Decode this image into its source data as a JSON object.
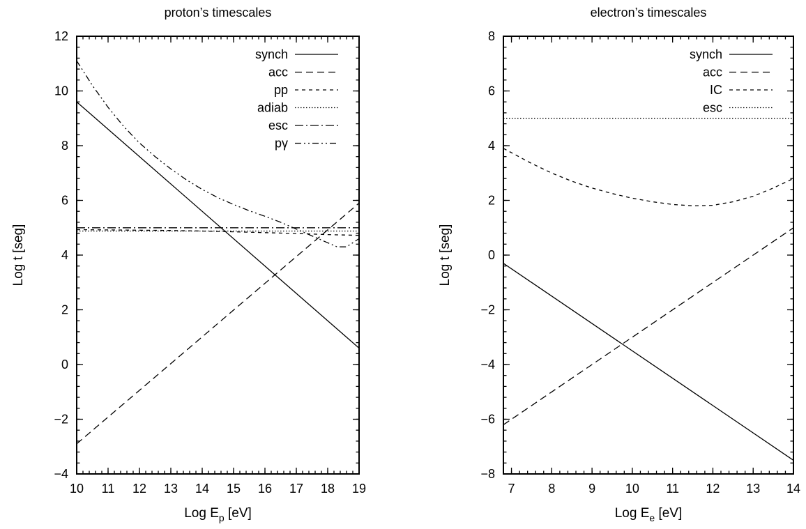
{
  "chart_data": [
    {
      "type": "line",
      "title": "proton’s timescales",
      "xlabel": "Log E",
      "xlabel_sub": "p",
      "xlabel_unit": " [eV]",
      "ylabel": "Log t [seg]",
      "xlim": [
        10,
        19
      ],
      "ylim": [
        -4,
        12
      ],
      "grid": false,
      "legend_position": "top-right",
      "x_ticks": [
        "10",
        "11",
        "12",
        "13",
        "14",
        "15",
        "16",
        "17",
        "18",
        "19"
      ],
      "y_ticks": [
        "−4",
        "−2",
        "0",
        "2",
        "4",
        "6",
        "8",
        "10",
        "12"
      ],
      "series": [
        {
          "name": "synch",
          "dash": "solid",
          "x": [
            10,
            19
          ],
          "y": [
            9.6,
            0.6
          ]
        },
        {
          "name": "acc",
          "dash": "long-dash",
          "x": [
            10,
            19
          ],
          "y": [
            -2.9,
            5.9
          ]
        },
        {
          "name": "pp",
          "dash": "short-dash",
          "x": [
            10,
            11,
            12,
            13,
            14,
            15,
            16,
            17,
            18,
            19
          ],
          "y": [
            4.93,
            4.92,
            4.91,
            4.9,
            4.88,
            4.85,
            4.82,
            4.79,
            4.75,
            4.72
          ]
        },
        {
          "name": "adiab",
          "dash": "dotted",
          "x": [
            10,
            19
          ],
          "y": [
            4.88,
            4.88
          ]
        },
        {
          "name": "esc",
          "dash": "dash-dot",
          "x": [
            10,
            19
          ],
          "y": [
            5.0,
            5.0
          ]
        },
        {
          "name": "pγ",
          "dash": "dash-dot-dot",
          "x": [
            10,
            10.5,
            11,
            11.5,
            12,
            12.5,
            13,
            13.5,
            14,
            14.5,
            15,
            15.5,
            16,
            16.5,
            17,
            17.5,
            18,
            18.3,
            18.6,
            19
          ],
          "y": [
            11.1,
            10.2,
            9.4,
            8.7,
            8.1,
            7.6,
            7.15,
            6.75,
            6.4,
            6.1,
            5.85,
            5.62,
            5.42,
            5.2,
            4.95,
            4.7,
            4.45,
            4.3,
            4.3,
            4.6
          ]
        }
      ]
    },
    {
      "type": "line",
      "title": "electron’s timescales",
      "xlabel": "Log E",
      "xlabel_sub": "e",
      "xlabel_unit": " [eV]",
      "ylabel": "Log t [seg]",
      "xlim": [
        6.8,
        14
      ],
      "ylim": [
        -8,
        8
      ],
      "grid": false,
      "legend_position": "top-right",
      "x_ticks": [
        "7",
        "8",
        "9",
        "10",
        "11",
        "12",
        "13",
        "14"
      ],
      "x_tick_values": [
        7,
        8,
        9,
        10,
        11,
        12,
        13,
        14
      ],
      "y_ticks": [
        "−8",
        "−6",
        "−4",
        "−2",
        "0",
        "2",
        "4",
        "6",
        "8"
      ],
      "series": [
        {
          "name": "synch",
          "dash": "solid",
          "x": [
            6.8,
            14
          ],
          "y": [
            -0.3,
            -7.5
          ]
        },
        {
          "name": "acc",
          "dash": "long-dash",
          "x": [
            6.8,
            14
          ],
          "y": [
            -6.2,
            1.0
          ]
        },
        {
          "name": "IC",
          "dash": "short-dash",
          "x": [
            6.8,
            7.5,
            8,
            8.5,
            9,
            9.5,
            10,
            10.5,
            11,
            11.5,
            12,
            12.5,
            13,
            13.5,
            14
          ],
          "y": [
            3.9,
            3.35,
            3.0,
            2.7,
            2.45,
            2.25,
            2.08,
            1.95,
            1.85,
            1.8,
            1.82,
            1.95,
            2.15,
            2.45,
            2.8
          ]
        },
        {
          "name": "esc",
          "dash": "dotted",
          "x": [
            6.8,
            14
          ],
          "y": [
            5.0,
            5.0
          ]
        }
      ]
    }
  ]
}
